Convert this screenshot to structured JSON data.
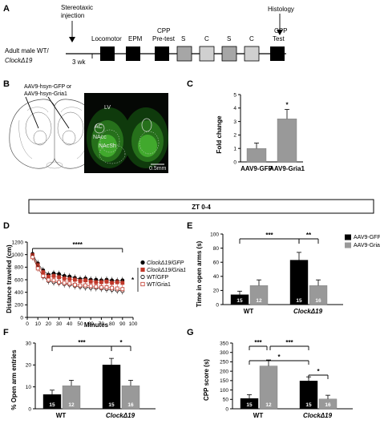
{
  "panels": {
    "A": "A",
    "B": "B",
    "C": "C",
    "D": "D",
    "E": "E",
    "F": "F",
    "G": "G"
  },
  "timeline": {
    "subject_line1": "Adult male WT/",
    "subject_line2": "ClockΔ19",
    "injection_line1": "Stereotaxic",
    "injection_line2": "injection",
    "histology": "Histology",
    "gap": "3 wk",
    "step_locomotor": "Locomotor",
    "step_epm": "EPM",
    "step_cpp_pre_line1": "CPP",
    "step_cpp_pre_line2": "Pre-test",
    "step_s1": "S",
    "step_c1": "C",
    "step_s2": "S",
    "step_c2": "C",
    "step_cpp_test_line1": "CPP",
    "step_cpp_test_line2": "Test"
  },
  "histology": {
    "viral_label_line1": "AAV9-hsyn-GFP or",
    "viral_label_line2": "AAV9-hsyn-Gria1",
    "region_lv": "LV",
    "region_ac": "AC",
    "region_nacc": "NAcc",
    "region_nacsh": "NAcSh",
    "scale_bar": "0.5mm"
  },
  "zt_banner": "ZT 0-4",
  "chart_data": [
    {
      "panel": "C",
      "type": "bar",
      "categories": [
        "AAV9-GFP",
        "AAV9-Gria1"
      ],
      "values": [
        1.0,
        3.2
      ],
      "errors": [
        0.4,
        0.7
      ],
      "ylabel": "Fold change",
      "ylim": [
        0,
        5
      ],
      "yticks": [
        "0",
        "1",
        "2",
        "3",
        "4",
        "5"
      ],
      "significance": "*"
    },
    {
      "panel": "D",
      "type": "line",
      "xlabel": "Minutes",
      "ylabel": "Distance traveled (cm)",
      "xlim": [
        0,
        100
      ],
      "ylim": [
        0,
        1200
      ],
      "xticks": [
        "0",
        "10",
        "20",
        "30",
        "40",
        "50",
        "60",
        "70",
        "80",
        "90",
        "100"
      ],
      "yticks": [
        "0",
        "200",
        "400",
        "600",
        "800",
        "1000",
        "1200"
      ],
      "x": [
        5,
        10,
        15,
        20,
        25,
        30,
        35,
        40,
        45,
        50,
        55,
        60,
        65,
        70,
        75,
        80,
        85,
        90
      ],
      "series": [
        {
          "name": "ClockΔ19/GFP",
          "color": "#000000",
          "marker": "filled-circle",
          "values": [
            1010,
            860,
            750,
            680,
            700,
            690,
            660,
            650,
            630,
            610,
            620,
            600,
            600,
            590,
            600,
            590,
            580,
            590
          ]
        },
        {
          "name": "ClockΔ19/Gria1",
          "color": "#c0392b",
          "marker": "filled-square",
          "values": [
            990,
            830,
            720,
            650,
            660,
            640,
            620,
            610,
            600,
            580,
            590,
            570,
            560,
            560,
            570,
            550,
            560,
            550
          ]
        },
        {
          "name": "WT/GFP",
          "color": "#000000",
          "marker": "open-circle",
          "values": [
            970,
            790,
            650,
            580,
            560,
            550,
            530,
            520,
            500,
            490,
            480,
            470,
            470,
            460,
            450,
            440,
            430,
            420
          ]
        },
        {
          "name": "WT/Gria1",
          "color": "#c0392b",
          "marker": "open-square",
          "values": [
            960,
            780,
            660,
            600,
            590,
            560,
            550,
            540,
            520,
            510,
            510,
            500,
            490,
            480,
            480,
            470,
            460,
            450
          ]
        }
      ],
      "significance": [
        "****",
        "*"
      ]
    },
    {
      "panel": "E",
      "type": "bar",
      "categories": [
        "WT",
        "ClockΔ19"
      ],
      "series": [
        {
          "name": "AAV9-GFP",
          "color": "#000000",
          "values": [
            14,
            63
          ],
          "errors": [
            5,
            11
          ],
          "n": [
            "15",
            "15"
          ]
        },
        {
          "name": "AAV9-Gria1",
          "color": "#999999",
          "values": [
            27,
            27
          ],
          "errors": [
            8,
            8
          ],
          "n": [
            "12",
            "16"
          ]
        }
      ],
      "ylabel": "Time in open arms (s)",
      "ylim": [
        0,
        100
      ],
      "yticks": [
        "0",
        "20",
        "40",
        "60",
        "80",
        "100"
      ],
      "significance": [
        "***",
        "**"
      ]
    },
    {
      "panel": "F",
      "type": "bar",
      "categories": [
        "WT",
        "ClockΔ19"
      ],
      "series": [
        {
          "name": "AAV9-GFP",
          "color": "#000000",
          "values": [
            6.5,
            20
          ],
          "errors": [
            2,
            3
          ],
          "n": [
            "15",
            "15"
          ]
        },
        {
          "name": "AAV9-Gria1",
          "color": "#999999",
          "values": [
            10.5,
            10.5
          ],
          "errors": [
            2.5,
            2.5
          ],
          "n": [
            "12",
            "16"
          ]
        }
      ],
      "ylabel": "% Open arm entries",
      "ylim": [
        0,
        30
      ],
      "yticks": [
        "0",
        "10",
        "20",
        "30"
      ],
      "significance": [
        "***",
        "*"
      ]
    },
    {
      "panel": "G",
      "type": "bar",
      "categories": [
        "WT",
        "ClockΔ19"
      ],
      "series": [
        {
          "name": "AAV9-GFP",
          "color": "#000000",
          "values": [
            55,
            148
          ],
          "errors": [
            20,
            22
          ],
          "n": [
            "15",
            "15"
          ]
        },
        {
          "name": "AAV9-Gria1",
          "color": "#999999",
          "values": [
            228,
            52
          ],
          "errors": [
            32,
            20
          ],
          "n": [
            "12",
            "16"
          ]
        }
      ],
      "ylabel": "CPP score (s)",
      "ylim": [
        0,
        350
      ],
      "yticks": [
        "0",
        "50",
        "100",
        "150",
        "200",
        "250",
        "300",
        "350"
      ],
      "significance": [
        "***",
        "***",
        "*",
        "*"
      ]
    }
  ]
}
